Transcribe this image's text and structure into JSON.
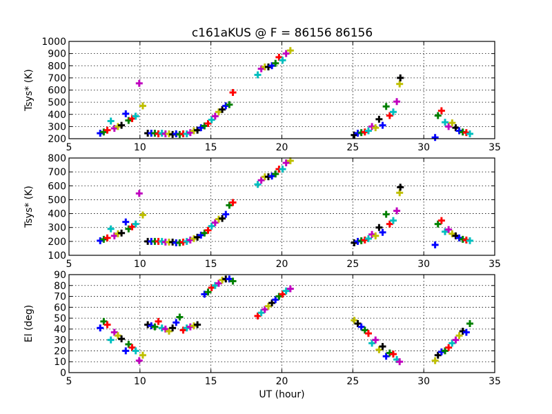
{
  "figure_title": "c161aKUS @ F = 86156 86156",
  "colors": [
    "#0000ff",
    "#008000",
    "#ff0000",
    "#00bfbf",
    "#bf00bf",
    "#bfbf00",
    "#000000"
  ],
  "chart_data": [
    {
      "type": "scatter",
      "title": "c161aKUS @ F = 86156 86156",
      "xlabel": "",
      "ylabel": "Tsys* (K)",
      "xlim": [
        5,
        35
      ],
      "ylim": [
        200,
        1000
      ],
      "xticks": [
        5,
        10,
        15,
        20,
        25,
        30,
        35
      ],
      "yticks": [
        200,
        300,
        400,
        500,
        600,
        700,
        800,
        900,
        1000
      ],
      "grid": true,
      "points": [
        [
          7.2,
          245
        ],
        [
          7.45,
          255
        ],
        [
          7.7,
          270
        ],
        [
          7.95,
          345
        ],
        [
          8.2,
          285
        ],
        [
          8.45,
          300
        ],
        [
          8.7,
          310
        ],
        [
          9.0,
          405
        ],
        [
          9.2,
          350
        ],
        [
          9.45,
          365
        ],
        [
          9.7,
          385
        ],
        [
          9.95,
          655
        ],
        [
          10.2,
          470
        ],
        [
          10.55,
          245
        ],
        [
          10.8,
          245
        ],
        [
          11.05,
          245
        ],
        [
          11.3,
          240
        ],
        [
          11.55,
          245
        ],
        [
          11.8,
          240
        ],
        [
          12.05,
          240
        ],
        [
          12.3,
          235
        ],
        [
          12.55,
          240
        ],
        [
          12.8,
          235
        ],
        [
          13.05,
          240
        ],
        [
          13.3,
          240
        ],
        [
          13.55,
          250
        ],
        [
          13.8,
          265
        ],
        [
          14.05,
          270
        ],
        [
          14.3,
          290
        ],
        [
          14.55,
          305
        ],
        [
          14.8,
          325
        ],
        [
          15.05,
          355
        ],
        [
          15.3,
          385
        ],
        [
          15.55,
          420
        ],
        [
          15.8,
          440
        ],
        [
          16.05,
          470
        ],
        [
          16.3,
          480
        ],
        [
          16.55,
          580
        ],
        [
          18.3,
          725
        ],
        [
          18.55,
          775
        ],
        [
          18.8,
          790
        ],
        [
          19.05,
          790
        ],
        [
          19.3,
          800
        ],
        [
          19.55,
          820
        ],
        [
          19.8,
          870
        ],
        [
          20.05,
          845
        ],
        [
          20.3,
          900
        ],
        [
          20.6,
          925
        ],
        [
          25.1,
          230
        ],
        [
          25.35,
          245
        ],
        [
          25.6,
          250
        ],
        [
          25.85,
          255
        ],
        [
          26.1,
          265
        ],
        [
          26.35,
          300
        ],
        [
          26.6,
          290
        ],
        [
          26.85,
          360
        ],
        [
          27.1,
          310
        ],
        [
          27.35,
          465
        ],
        [
          27.6,
          390
        ],
        [
          27.85,
          420
        ],
        [
          28.1,
          505
        ],
        [
          28.3,
          650
        ],
        [
          28.35,
          700
        ],
        [
          30.8,
          210
        ],
        [
          31.0,
          390
        ],
        [
          31.25,
          430
        ],
        [
          31.5,
          335
        ],
        [
          31.75,
          300
        ],
        [
          32.0,
          330
        ],
        [
          32.25,
          290
        ],
        [
          32.5,
          265
        ],
        [
          32.75,
          255
        ],
        [
          33.0,
          250
        ],
        [
          33.25,
          240
        ]
      ]
    },
    {
      "type": "scatter",
      "title": "",
      "xlabel": "",
      "ylabel": "Tsys* (K)",
      "xlim": [
        5,
        35
      ],
      "ylim": [
        100,
        800
      ],
      "xticks": [
        5,
        10,
        15,
        20,
        25,
        30,
        35
      ],
      "yticks": [
        100,
        200,
        300,
        400,
        500,
        600,
        700,
        800
      ],
      "grid": true,
      "points": [
        [
          7.2,
          205
        ],
        [
          7.45,
          215
        ],
        [
          7.7,
          225
        ],
        [
          7.95,
          290
        ],
        [
          8.2,
          240
        ],
        [
          8.45,
          255
        ],
        [
          8.7,
          260
        ],
        [
          9.0,
          340
        ],
        [
          9.2,
          290
        ],
        [
          9.45,
          305
        ],
        [
          9.7,
          325
        ],
        [
          9.95,
          545
        ],
        [
          10.2,
          390
        ],
        [
          10.55,
          200
        ],
        [
          10.8,
          200
        ],
        [
          11.05,
          200
        ],
        [
          11.3,
          200
        ],
        [
          11.55,
          200
        ],
        [
          11.8,
          195
        ],
        [
          12.05,
          195
        ],
        [
          12.3,
          195
        ],
        [
          12.55,
          190
        ],
        [
          12.8,
          190
        ],
        [
          13.05,
          195
        ],
        [
          13.3,
          200
        ],
        [
          13.55,
          210
        ],
        [
          13.8,
          220
        ],
        [
          14.05,
          230
        ],
        [
          14.3,
          245
        ],
        [
          14.55,
          260
        ],
        [
          14.8,
          280
        ],
        [
          15.05,
          310
        ],
        [
          15.3,
          335
        ],
        [
          15.55,
          360
        ],
        [
          15.8,
          365
        ],
        [
          16.05,
          395
        ],
        [
          16.3,
          460
        ],
        [
          16.55,
          480
        ],
        [
          18.3,
          610
        ],
        [
          18.55,
          640
        ],
        [
          18.8,
          665
        ],
        [
          19.05,
          665
        ],
        [
          19.3,
          670
        ],
        [
          19.55,
          685
        ],
        [
          19.8,
          720
        ],
        [
          20.05,
          720
        ],
        [
          20.3,
          765
        ],
        [
          20.6,
          780
        ],
        [
          25.1,
          190
        ],
        [
          25.35,
          200
        ],
        [
          25.6,
          205
        ],
        [
          25.85,
          210
        ],
        [
          26.1,
          220
        ],
        [
          26.35,
          250
        ],
        [
          26.6,
          240
        ],
        [
          26.85,
          300
        ],
        [
          27.1,
          265
        ],
        [
          27.35,
          395
        ],
        [
          27.6,
          325
        ],
        [
          27.85,
          350
        ],
        [
          28.1,
          420
        ],
        [
          28.3,
          550
        ],
        [
          28.35,
          590
        ],
        [
          30.8,
          175
        ],
        [
          31.0,
          325
        ],
        [
          31.25,
          350
        ],
        [
          31.5,
          270
        ],
        [
          31.75,
          285
        ],
        [
          32.0,
          255
        ],
        [
          32.25,
          240
        ],
        [
          32.5,
          225
        ],
        [
          32.75,
          215
        ],
        [
          33.0,
          210
        ],
        [
          33.25,
          205
        ]
      ]
    },
    {
      "type": "scatter",
      "title": "",
      "xlabel": "UT (hour)",
      "ylabel": "El (deg)",
      "xlim": [
        5,
        35
      ],
      "ylim": [
        0,
        90
      ],
      "xticks": [
        5,
        10,
        15,
        20,
        25,
        30,
        35
      ],
      "yticks": [
        0,
        10,
        20,
        30,
        40,
        50,
        60,
        70,
        80,
        90
      ],
      "grid": true,
      "points": [
        [
          7.2,
          41
        ],
        [
          7.45,
          47
        ],
        [
          7.7,
          44
        ],
        [
          7.95,
          30
        ],
        [
          8.2,
          37
        ],
        [
          8.45,
          34
        ],
        [
          8.7,
          31
        ],
        [
          9.0,
          20
        ],
        [
          9.2,
          26
        ],
        [
          9.45,
          23
        ],
        [
          9.7,
          20
        ],
        [
          9.95,
          11
        ],
        [
          10.2,
          16
        ],
        [
          10.55,
          44
        ],
        [
          10.8,
          43
        ],
        [
          11.05,
          42
        ],
        [
          11.3,
          47
        ],
        [
          11.55,
          41
        ],
        [
          11.8,
          40
        ],
        [
          12.05,
          38
        ],
        [
          12.3,
          41
        ],
        [
          12.55,
          46
        ],
        [
          12.8,
          51
        ],
        [
          13.05,
          39
        ],
        [
          13.3,
          41
        ],
        [
          13.55,
          42
        ],
        [
          13.8,
          43
        ],
        [
          14.05,
          44
        ],
        [
          14.55,
          72
        ],
        [
          14.8,
          74
        ],
        [
          15.05,
          78
        ],
        [
          15.3,
          80
        ],
        [
          15.55,
          82
        ],
        [
          15.8,
          85
        ],
        [
          16.05,
          86
        ],
        [
          16.3,
          86
        ],
        [
          16.55,
          84
        ],
        [
          18.3,
          52
        ],
        [
          18.55,
          55
        ],
        [
          18.8,
          58
        ],
        [
          19.05,
          61
        ],
        [
          19.3,
          64
        ],
        [
          19.55,
          67
        ],
        [
          19.8,
          70
        ],
        [
          20.05,
          72
        ],
        [
          20.3,
          75
        ],
        [
          20.6,
          77
        ],
        [
          25.1,
          48
        ],
        [
          25.35,
          45
        ],
        [
          25.6,
          42
        ],
        [
          25.85,
          39
        ],
        [
          26.1,
          36
        ],
        [
          26.35,
          27
        ],
        [
          26.6,
          30
        ],
        [
          26.85,
          21
        ],
        [
          27.1,
          24
        ],
        [
          27.35,
          15
        ],
        [
          27.6,
          18
        ],
        [
          27.85,
          17
        ],
        [
          28.1,
          12
        ],
        [
          28.3,
          10
        ],
        [
          30.8,
          11
        ],
        [
          31.0,
          16
        ],
        [
          31.25,
          19
        ],
        [
          31.5,
          20
        ],
        [
          31.75,
          23
        ],
        [
          32.0,
          27
        ],
        [
          32.25,
          30
        ],
        [
          32.5,
          34
        ],
        [
          32.75,
          38
        ],
        [
          33.0,
          37
        ],
        [
          33.25,
          45
        ]
      ]
    }
  ]
}
